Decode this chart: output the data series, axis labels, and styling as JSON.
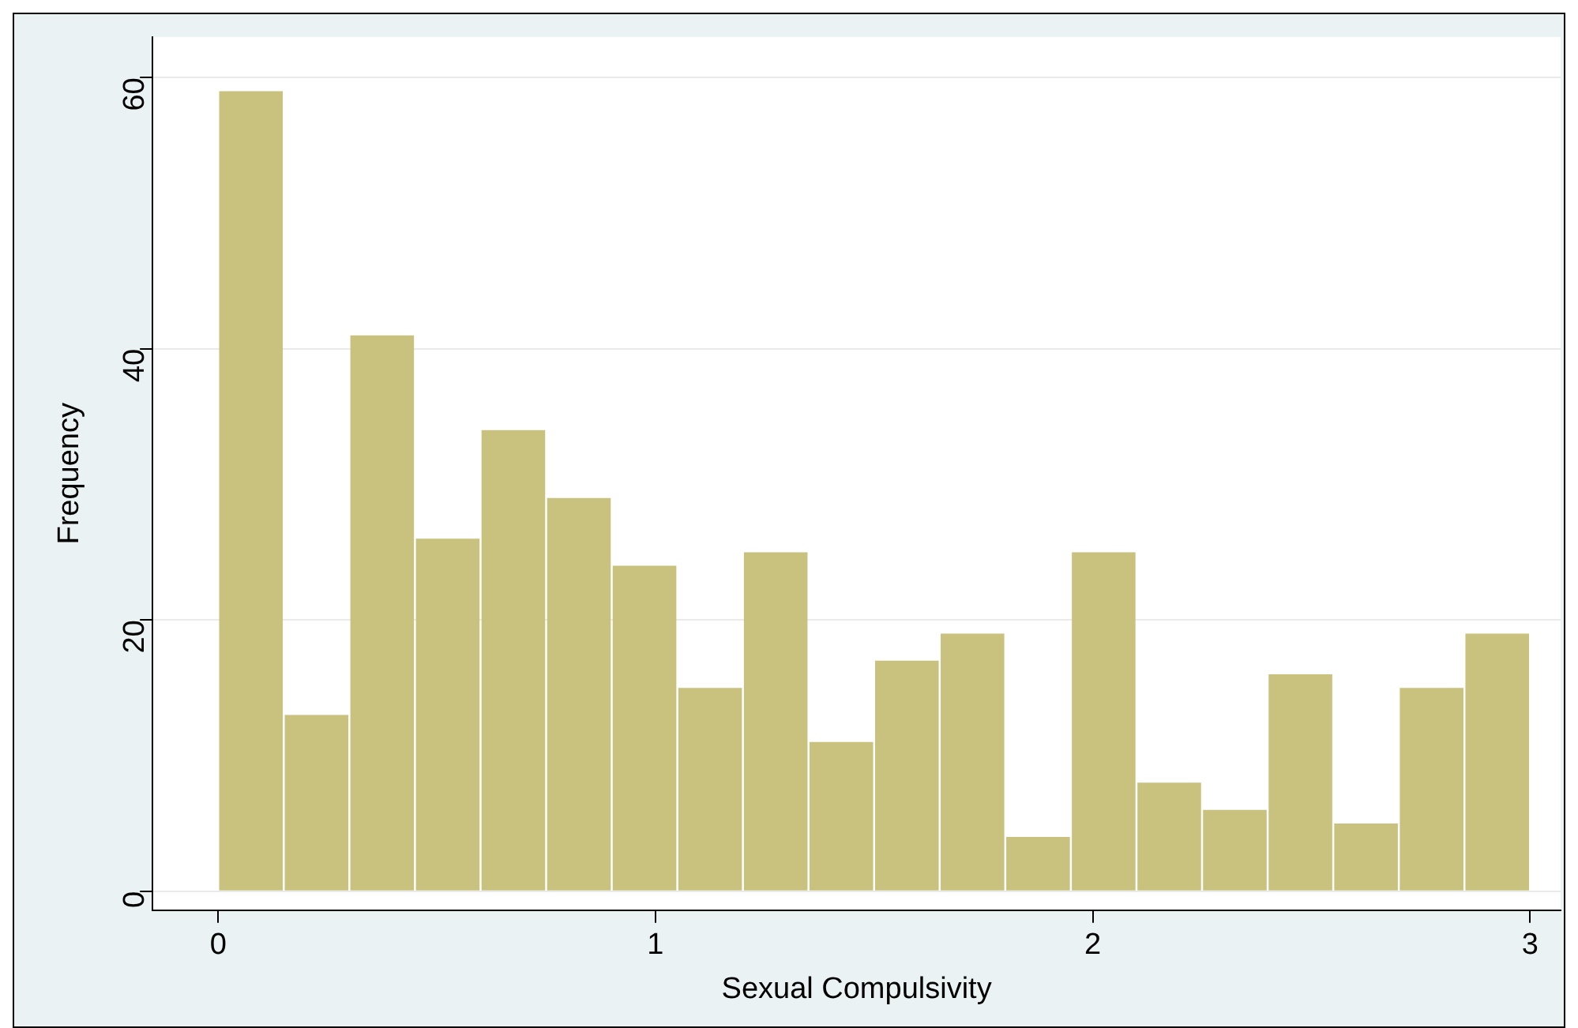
{
  "chart_data": {
    "type": "histogram",
    "xlabel": "Sexual Compulsivity",
    "ylabel": "Frequency",
    "bins": [
      0,
      0.15,
      0.3,
      0.45,
      0.6,
      0.75,
      0.9,
      1.05,
      1.2,
      1.35,
      1.5,
      1.65,
      1.8,
      1.95,
      2.1,
      2.25,
      2.4,
      2.55,
      2.7,
      2.85,
      3
    ],
    "values": [
      59,
      13,
      41,
      26,
      34,
      29,
      24,
      15,
      25,
      11,
      17,
      19,
      4,
      25,
      8,
      6,
      16,
      5,
      15,
      19
    ],
    "color": "#c9c27f",
    "xlim": [
      -0.15,
      3.07
    ],
    "xticks": [
      0,
      1,
      2,
      3
    ],
    "ylim": [
      -1.4,
      63
    ],
    "yticks": [
      0,
      20,
      40,
      60
    ],
    "grid": "y",
    "legend": false
  }
}
